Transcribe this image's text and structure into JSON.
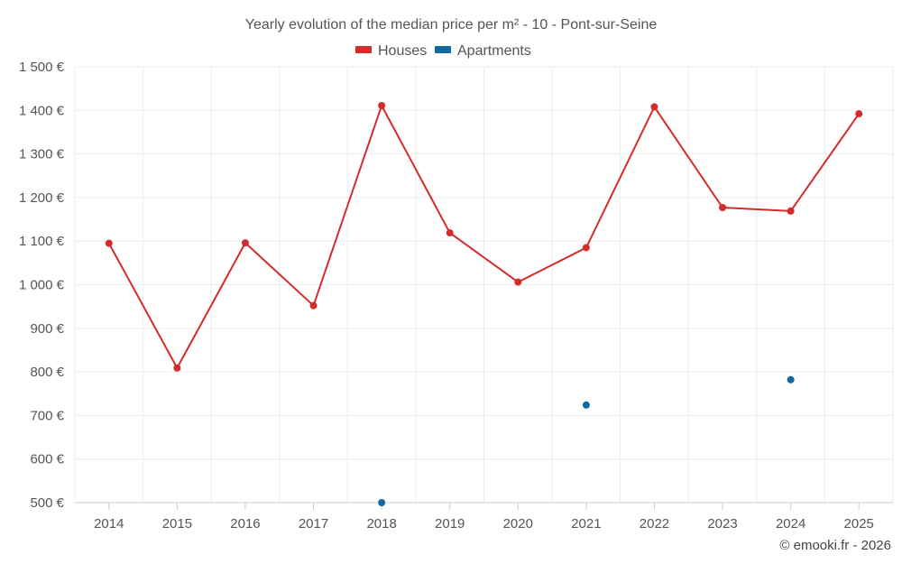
{
  "chart_data": {
    "type": "line",
    "title": "Yearly evolution of the median price per m² - 10 - Pont-sur-Seine",
    "categories": [
      "2014",
      "2015",
      "2016",
      "2017",
      "2018",
      "2019",
      "2020",
      "2021",
      "2022",
      "2023",
      "2024",
      "2025"
    ],
    "series": [
      {
        "name": "Houses",
        "color": "#d42b2b",
        "values": [
          1095,
          809,
          1096,
          952,
          1411,
          1119,
          1006,
          1085,
          1408,
          1177,
          1169,
          1392
        ]
      },
      {
        "name": "Apartments",
        "color": "#0e6aa0",
        "values": [
          null,
          null,
          null,
          null,
          500,
          null,
          null,
          724,
          null,
          null,
          782,
          null
        ]
      }
    ],
    "ylim": [
      500,
      1500
    ],
    "yticks": [
      500,
      600,
      700,
      800,
      900,
      1000,
      1100,
      1200,
      1300,
      1400,
      1500
    ],
    "ytick_labels": [
      "500 €",
      "600 €",
      "700 €",
      "800 €",
      "900 €",
      "1 000 €",
      "1 100 €",
      "1 200 €",
      "1 300 €",
      "1 400 €",
      "1 500 €"
    ],
    "grid": true,
    "legend_position": "top-center"
  },
  "credit": "© emooki.fr - 2026"
}
